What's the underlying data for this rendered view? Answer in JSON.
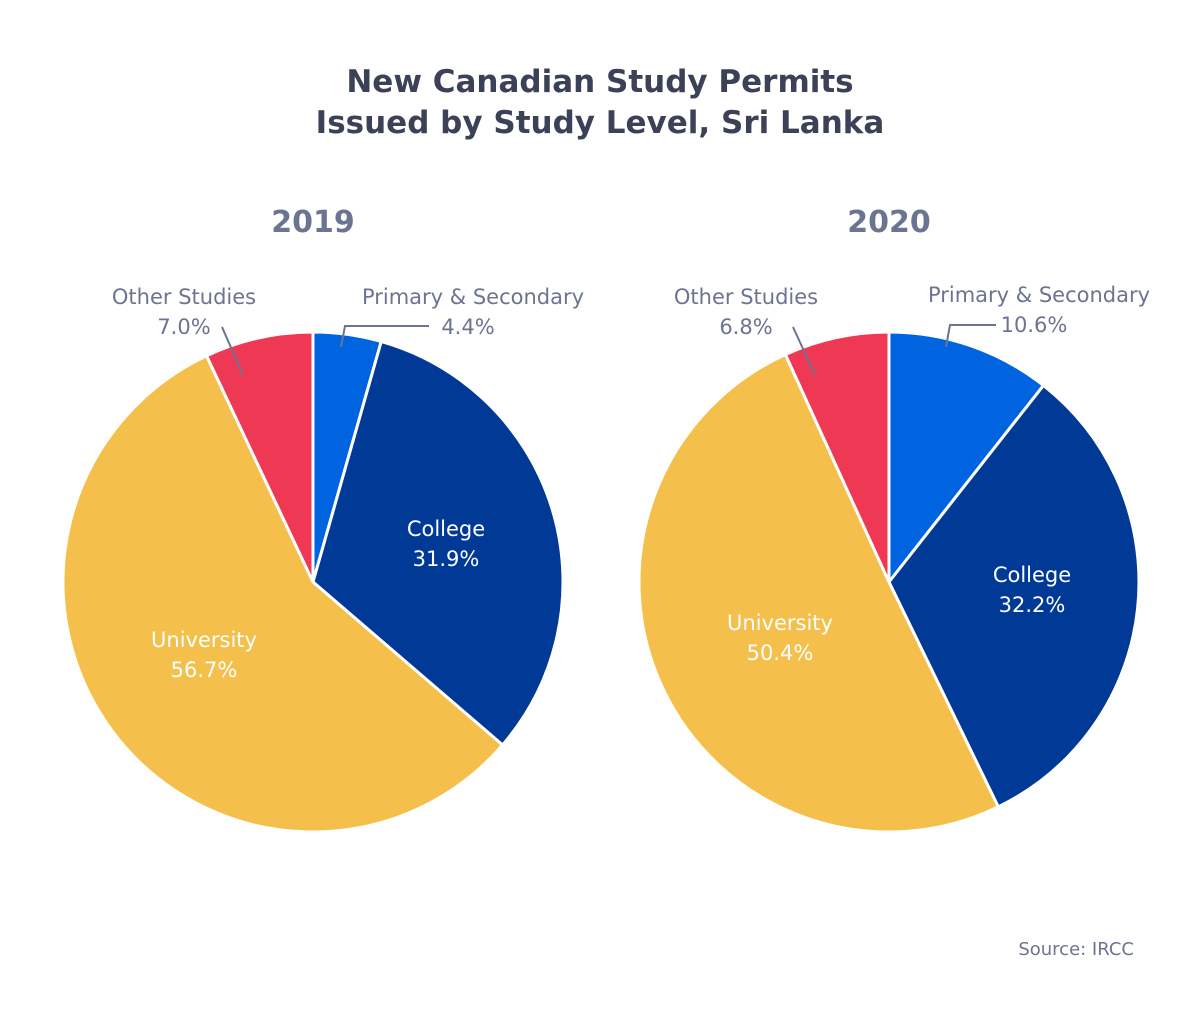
{
  "chart_data": [
    {
      "type": "pie",
      "title": "New Canadian Study Permits Issued by Study Level, Sri Lanka",
      "subtitle": "2019",
      "slices": [
        {
          "label": "Primary & Secondary",
          "value": 4.4,
          "display": "4.4%",
          "color": "#0064e1"
        },
        {
          "label": "College",
          "value": 31.9,
          "display": "31.9%",
          "color": "#003a96"
        },
        {
          "label": "University",
          "value": 56.7,
          "display": "56.7%",
          "color": "#f5bf4c"
        },
        {
          "label": "Other Studies",
          "value": 7.0,
          "display": "7.0%",
          "color": "#ef3853"
        }
      ]
    },
    {
      "type": "pie",
      "title": "New Canadian Study Permits Issued by Study Level, Sri Lanka",
      "subtitle": "2020",
      "slices": [
        {
          "label": "Primary & Secondary",
          "value": 10.6,
          "display": "10.6%",
          "color": "#0064e1"
        },
        {
          "label": "College",
          "value": 32.2,
          "display": "32.2%",
          "color": "#003a96"
        },
        {
          "label": "University",
          "value": 50.4,
          "display": "50.4%",
          "color": "#f5bf4c"
        },
        {
          "label": "Other Studies",
          "value": 6.8,
          "display": "6.8%",
          "color": "#ef3853"
        }
      ]
    }
  ],
  "title_lines": [
    "New Canadian Study Permits",
    "Issued by Study Level, Sri Lanka"
  ],
  "source": "Source: IRCC"
}
